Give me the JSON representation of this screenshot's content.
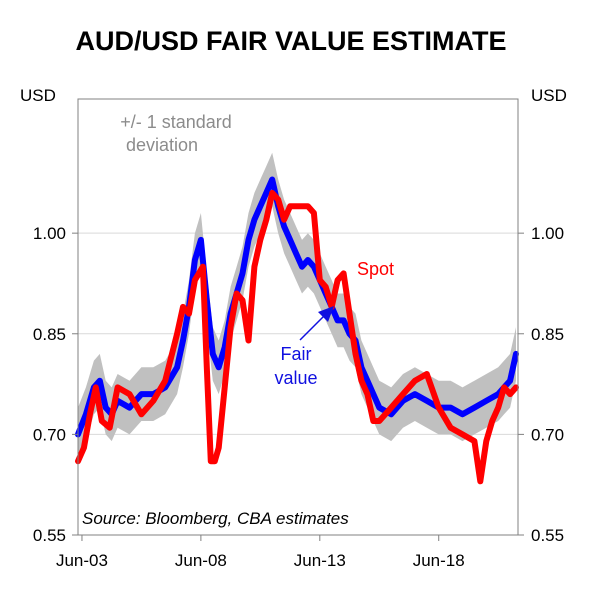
{
  "chart_data": {
    "type": "line",
    "title": "AUD/USD FAIR VALUE ESTIMATE",
    "ylabel_left": "USD",
    "ylabel_right": "USD",
    "ylim": [
      0.55,
      1.2
    ],
    "xlim": [
      "2003-04",
      "2021-10"
    ],
    "y_ticks": [
      "1.00",
      "0.85",
      "0.70",
      "0.55"
    ],
    "y_tick_values": [
      1.0,
      0.85,
      0.7,
      0.55
    ],
    "x_ticks": [
      "Jun-03",
      "Jun-08",
      "Jun-13",
      "Jun-18"
    ],
    "x_tick_values": [
      "2003-06",
      "2008-06",
      "2013-06",
      "2018-06"
    ],
    "grid": "horizontal",
    "annotations": {
      "band_label_line1": "+/- 1 standard",
      "band_label_line2": "deviation",
      "spot_label": "Spot",
      "fair_label_line1": "Fair",
      "fair_label_line2": "value",
      "source": "Source: Bloomberg, CBA estimates"
    },
    "colors": {
      "band": "#c0c0c0",
      "fair": "#0000ff",
      "spot": "#ff0000",
      "band_text": "#8c8c8c"
    },
    "band_halfwidth": 0.04,
    "fair_value": {
      "x": [
        "2003-04",
        "2003-08",
        "2003-12",
        "2004-03",
        "2004-06",
        "2004-09",
        "2004-12",
        "2005-06",
        "2005-12",
        "2006-06",
        "2006-12",
        "2007-06",
        "2007-09",
        "2007-12",
        "2008-03",
        "2008-06",
        "2008-09",
        "2008-12",
        "2009-03",
        "2009-06",
        "2009-09",
        "2009-12",
        "2010-03",
        "2010-06",
        "2010-09",
        "2010-12",
        "2011-03",
        "2011-06",
        "2011-09",
        "2011-12",
        "2012-03",
        "2012-06",
        "2012-09",
        "2012-12",
        "2013-03",
        "2013-06",
        "2013-09",
        "2013-12",
        "2014-03",
        "2014-06",
        "2014-09",
        "2014-12",
        "2015-03",
        "2015-06",
        "2015-09",
        "2015-12",
        "2016-06",
        "2016-12",
        "2017-06",
        "2017-12",
        "2018-06",
        "2018-12",
        "2019-06",
        "2019-12",
        "2020-06",
        "2020-12",
        "2021-03",
        "2021-06",
        "2021-09"
      ],
      "values": [
        0.7,
        0.73,
        0.77,
        0.78,
        0.74,
        0.73,
        0.75,
        0.74,
        0.76,
        0.76,
        0.77,
        0.8,
        0.84,
        0.89,
        0.96,
        0.99,
        0.9,
        0.82,
        0.8,
        0.83,
        0.88,
        0.91,
        0.94,
        0.99,
        1.02,
        1.04,
        1.06,
        1.08,
        1.04,
        1.01,
        0.99,
        0.97,
        0.95,
        0.96,
        0.95,
        0.93,
        0.91,
        0.89,
        0.87,
        0.87,
        0.85,
        0.84,
        0.8,
        0.78,
        0.76,
        0.74,
        0.73,
        0.75,
        0.76,
        0.75,
        0.74,
        0.74,
        0.73,
        0.74,
        0.75,
        0.76,
        0.77,
        0.78,
        0.82
      ]
    },
    "spot": {
      "x": [
        "2003-04",
        "2003-07",
        "2003-10",
        "2004-01",
        "2004-04",
        "2004-08",
        "2004-12",
        "2005-06",
        "2005-12",
        "2006-06",
        "2006-12",
        "2007-06",
        "2007-09",
        "2007-12",
        "2008-03",
        "2008-07",
        "2008-09",
        "2008-11",
        "2009-01",
        "2009-03",
        "2009-06",
        "2009-09",
        "2009-12",
        "2010-03",
        "2010-06",
        "2010-09",
        "2010-12",
        "2011-03",
        "2011-06",
        "2011-09",
        "2011-12",
        "2012-03",
        "2012-06",
        "2012-09",
        "2012-12",
        "2013-03",
        "2013-06",
        "2013-09",
        "2013-12",
        "2014-03",
        "2014-06",
        "2014-09",
        "2014-12",
        "2015-03",
        "2015-06",
        "2015-09",
        "2015-12",
        "2016-06",
        "2016-12",
        "2017-06",
        "2017-12",
        "2018-06",
        "2018-12",
        "2019-06",
        "2019-12",
        "2020-03",
        "2020-06",
        "2020-09",
        "2020-12",
        "2021-03",
        "2021-06",
        "2021-09"
      ],
      "values": [
        0.66,
        0.68,
        0.73,
        0.77,
        0.72,
        0.71,
        0.77,
        0.76,
        0.73,
        0.75,
        0.78,
        0.85,
        0.89,
        0.88,
        0.93,
        0.95,
        0.8,
        0.66,
        0.66,
        0.68,
        0.77,
        0.86,
        0.91,
        0.9,
        0.84,
        0.95,
        0.99,
        1.02,
        1.06,
        1.05,
        1.02,
        1.04,
        1.04,
        1.04,
        1.04,
        1.03,
        0.93,
        0.92,
        0.89,
        0.93,
        0.94,
        0.88,
        0.82,
        0.78,
        0.76,
        0.72,
        0.72,
        0.74,
        0.76,
        0.78,
        0.79,
        0.74,
        0.71,
        0.7,
        0.69,
        0.63,
        0.69,
        0.72,
        0.74,
        0.77,
        0.76,
        0.77
      ]
    }
  }
}
